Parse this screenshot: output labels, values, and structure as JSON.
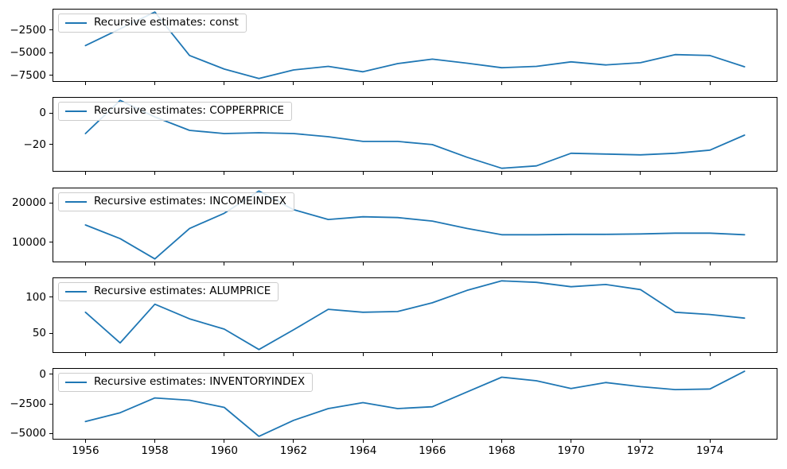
{
  "figure": {
    "background": "#ffffff",
    "description": "Five stacked line subplots of recursive coefficient estimates, shared x axis 1956-1975"
  },
  "chart_data": {
    "type": "line",
    "grid": false,
    "legend_position": "upper left",
    "line_color": "#1f77b4",
    "axis_color": "#000000",
    "legend_border_color": "#cccccc",
    "x": [
      1956,
      1957,
      1958,
      1959,
      1960,
      1961,
      1962,
      1963,
      1964,
      1965,
      1966,
      1967,
      1968,
      1969,
      1970,
      1971,
      1972,
      1973,
      1974,
      1975
    ],
    "xlim": [
      1955.05,
      1975.95
    ],
    "xticks": [
      1956,
      1958,
      1960,
      1962,
      1964,
      1966,
      1968,
      1970,
      1972,
      1974
    ],
    "subplots": [
      {
        "key": "const",
        "legend": "Recursive estimates: const",
        "values": [
          -4200,
          -2350,
          -500,
          -5300,
          -6800,
          -7850,
          -6900,
          -6500,
          -7100,
          -6200,
          -5700,
          -6150,
          -6650,
          -6500,
          -6000,
          -6350,
          -6100,
          -5200,
          -5300,
          -6550
        ],
        "yticks": [
          -7500,
          -5000,
          -2500
        ],
        "ylim": [
          -8217.5,
          -132.5
        ]
      },
      {
        "key": "COPPERPRICE",
        "legend": "Recursive estimates: COPPERPRICE",
        "values": [
          -13,
          8,
          -2.5,
          -11,
          -13,
          -12.5,
          -13,
          -15,
          -18,
          -18,
          -20,
          -28,
          -35,
          -33.5,
          -25.5,
          -26,
          -26.5,
          -25.5,
          -23.5,
          -14
        ],
        "yticks": [
          -20,
          0
        ],
        "ylim": [
          -37.15,
          10.15
        ]
      },
      {
        "key": "INCOMEINDEX",
        "legend": "Recursive estimates: INCOMEINDEX",
        "values": [
          14400,
          10900,
          5700,
          13500,
          17400,
          23100,
          18300,
          15800,
          16500,
          16300,
          15400,
          13500,
          11900,
          11900,
          12000,
          12000,
          12100,
          12300,
          12300,
          11900
        ],
        "yticks": [
          10000,
          20000
        ],
        "ylim": [
          4830,
          23970
        ]
      },
      {
        "key": "ALUMPRICE",
        "legend": "Recursive estimates: ALUMPRICE",
        "values": [
          79,
          37,
          90,
          70,
          56,
          28,
          55,
          83,
          79,
          80,
          92,
          109,
          122,
          120,
          114,
          117,
          110,
          79,
          76,
          71
        ],
        "yticks": [
          50,
          100
        ],
        "ylim": [
          23.3,
          126.7
        ]
      },
      {
        "key": "INVENTORYINDEX",
        "legend": "Recursive estimates: INVENTORYINDEX",
        "values": [
          -4000,
          -3250,
          -2000,
          -2200,
          -2800,
          -5250,
          -3900,
          -2900,
          -2400,
          -2900,
          -2750,
          -1500,
          -250,
          -550,
          -1200,
          -700,
          -1050,
          -1300,
          -1250,
          250
        ],
        "yticks": [
          -5000,
          -2500,
          0
        ],
        "ylim": [
          -5525,
          525
        ]
      }
    ]
  }
}
